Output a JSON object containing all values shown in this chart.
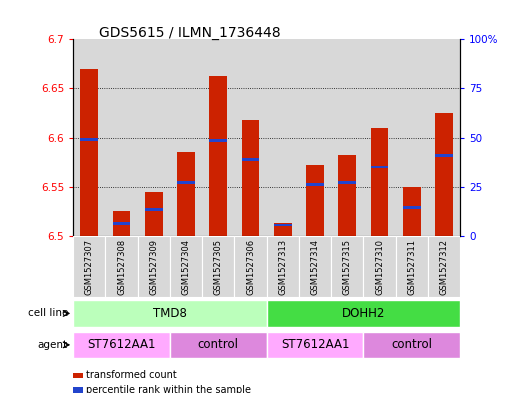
{
  "title": "GDS5615 / ILMN_1736448",
  "samples": [
    "GSM1527307",
    "GSM1527308",
    "GSM1527309",
    "GSM1527304",
    "GSM1527305",
    "GSM1527306",
    "GSM1527313",
    "GSM1527314",
    "GSM1527315",
    "GSM1527310",
    "GSM1527311",
    "GSM1527312"
  ],
  "red_values": [
    6.67,
    6.525,
    6.545,
    6.585,
    6.663,
    6.618,
    6.513,
    6.572,
    6.582,
    6.61,
    6.55,
    6.625
  ],
  "blue_values": [
    6.598,
    6.513,
    6.527,
    6.554,
    6.597,
    6.578,
    6.511,
    6.552,
    6.554,
    6.57,
    6.529,
    6.582
  ],
  "ymin": 6.5,
  "ymax": 6.7,
  "yticks_left": [
    6.5,
    6.55,
    6.6,
    6.65,
    6.7
  ],
  "yticks_right": [
    0,
    25,
    50,
    75,
    100
  ],
  "bar_width": 0.55,
  "red_color": "#cc2200",
  "blue_color": "#2244cc",
  "cell_line_groups": [
    {
      "label": "TMD8",
      "start": 0,
      "end": 6,
      "color": "#bbffbb"
    },
    {
      "label": "DOHH2",
      "start": 6,
      "end": 12,
      "color": "#44dd44"
    }
  ],
  "agent_groups": [
    {
      "label": "ST7612AA1",
      "start": 0,
      "end": 3,
      "color": "#ffaaff"
    },
    {
      "label": "control",
      "start": 3,
      "end": 6,
      "color": "#dd88dd"
    },
    {
      "label": "ST7612AA1",
      "start": 6,
      "end": 9,
      "color": "#ffaaff"
    },
    {
      "label": "control",
      "start": 9,
      "end": 12,
      "color": "#dd88dd"
    }
  ],
  "legend_items": [
    {
      "label": "transformed count",
      "color": "#cc2200"
    },
    {
      "label": "percentile rank within the sample",
      "color": "#2244cc"
    }
  ],
  "col_bg": "#d8d8d8",
  "plot_bg": "#ffffff"
}
